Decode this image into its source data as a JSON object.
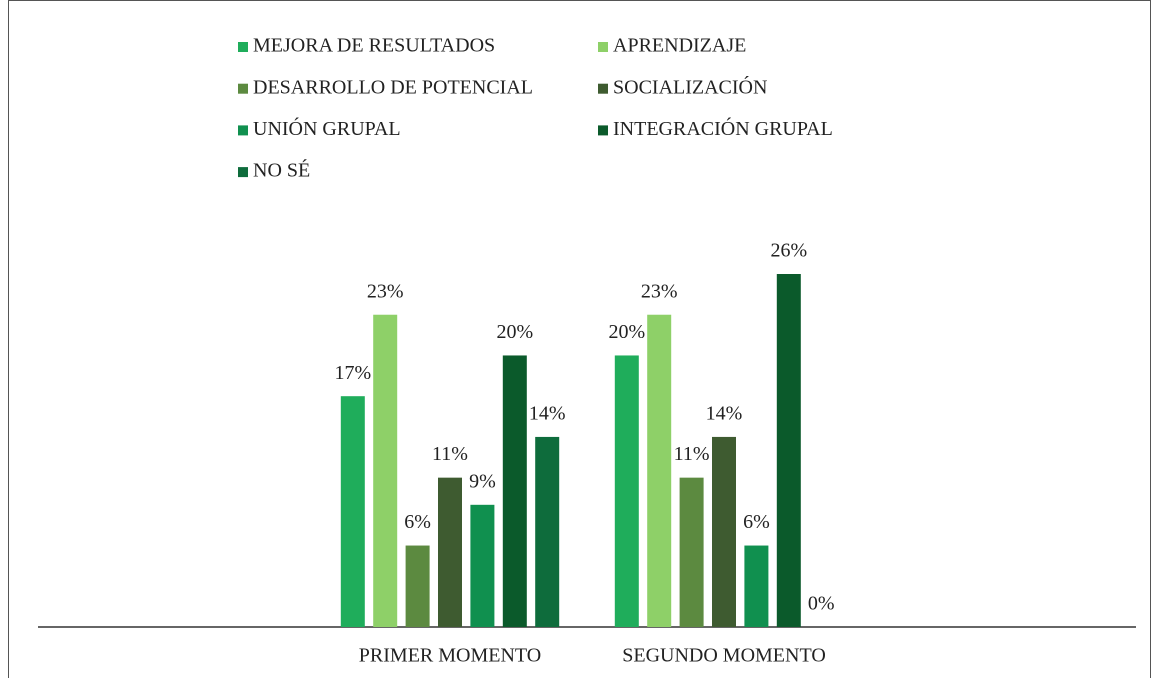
{
  "chart_data": {
    "type": "bar",
    "categories": [
      "PRIMER MOMENTO",
      "SEGUNDO MOMENTO"
    ],
    "series": [
      {
        "name": "MEJORA DE RESULTADOS",
        "color": "#1fad5b",
        "values": [
          17,
          20
        ],
        "value_labels": [
          "17%",
          "20%"
        ]
      },
      {
        "name": "APRENDIZAJE",
        "color": "#8ed068",
        "values": [
          23,
          23
        ],
        "value_labels": [
          "23%",
          "23%"
        ]
      },
      {
        "name": "DESARROLLO DE POTENCIAL",
        "color": "#5c8a40",
        "values": [
          6,
          11
        ],
        "value_labels": [
          "6%",
          "11%"
        ]
      },
      {
        "name": "SOCIALIZACIÓN",
        "color": "#3e5b30",
        "values": [
          11,
          14
        ],
        "value_labels": [
          "11%",
          "14%"
        ]
      },
      {
        "name": "UNIÓN GRUPAL",
        "color": "#10904f",
        "values": [
          9,
          6
        ],
        "value_labels": [
          "9%",
          "6%"
        ]
      },
      {
        "name": "INTEGRACIÓN GRUPAL",
        "color": "#0b5a2b",
        "values": [
          20,
          26
        ],
        "value_labels": [
          "20%",
          "26%"
        ]
      },
      {
        "name": "NO SÉ",
        "color": "#0e6c3c",
        "values": [
          14,
          0
        ],
        "value_labels": [
          "14%",
          "0%"
        ]
      }
    ],
    "legend": "top"
  }
}
